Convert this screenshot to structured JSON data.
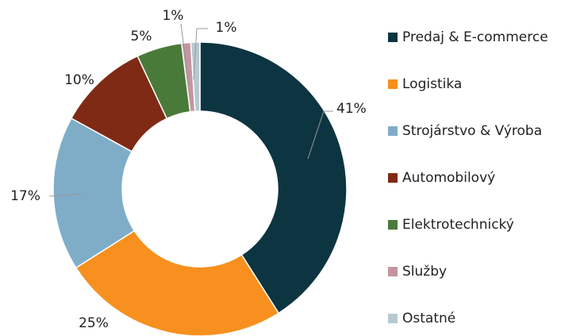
{
  "chart_data": {
    "type": "donut",
    "categories": [
      "Predaj & E-commerce",
      "Logistika",
      "Strojárstvo & Výroba",
      "Automobilový",
      "Elektrotechnický",
      "Služby",
      "Ostatné"
    ],
    "values": [
      41,
      25,
      17,
      10,
      5,
      1,
      1
    ],
    "value_labels": [
      "41%",
      "25%",
      "17%",
      "10%",
      "5%",
      "1%",
      "1%"
    ],
    "colors": [
      "#0d3441",
      "#f7901e",
      "#7fadc8",
      "#7f2a14",
      "#4a7a3a",
      "#c4959f",
      "#b6c9d1"
    ],
    "legend": "right"
  }
}
